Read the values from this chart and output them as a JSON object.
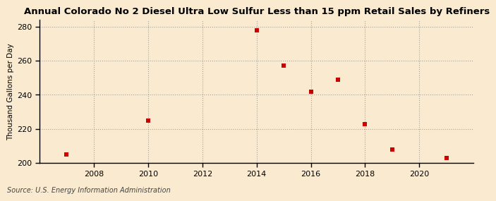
{
  "title": "Annual Colorado No 2 Diesel Ultra Low Sulfur Less than 15 ppm Retail Sales by Refiners",
  "ylabel": "Thousand Gallons per Day",
  "source": "Source: U.S. Energy Information Administration",
  "x_values": [
    2007,
    2010,
    2014,
    2015,
    2016,
    2017,
    2018,
    2019,
    2021
  ],
  "y_values": [
    205.0,
    225.0,
    278.0,
    257.0,
    242.0,
    249.0,
    223.0,
    208.0,
    203.0
  ],
  "marker_color": "#cc0000",
  "marker_size": 4,
  "marker_style": "s",
  "background_color": "#faebd0",
  "grid_color": "#999999",
  "xlim": [
    2006.0,
    2022.0
  ],
  "ylim": [
    200,
    284
  ],
  "xticks": [
    2008,
    2010,
    2012,
    2014,
    2016,
    2018,
    2020
  ],
  "yticks": [
    200,
    220,
    240,
    260,
    280
  ],
  "title_fontsize": 9.5,
  "label_fontsize": 7.5,
  "tick_fontsize": 8,
  "source_fontsize": 7
}
